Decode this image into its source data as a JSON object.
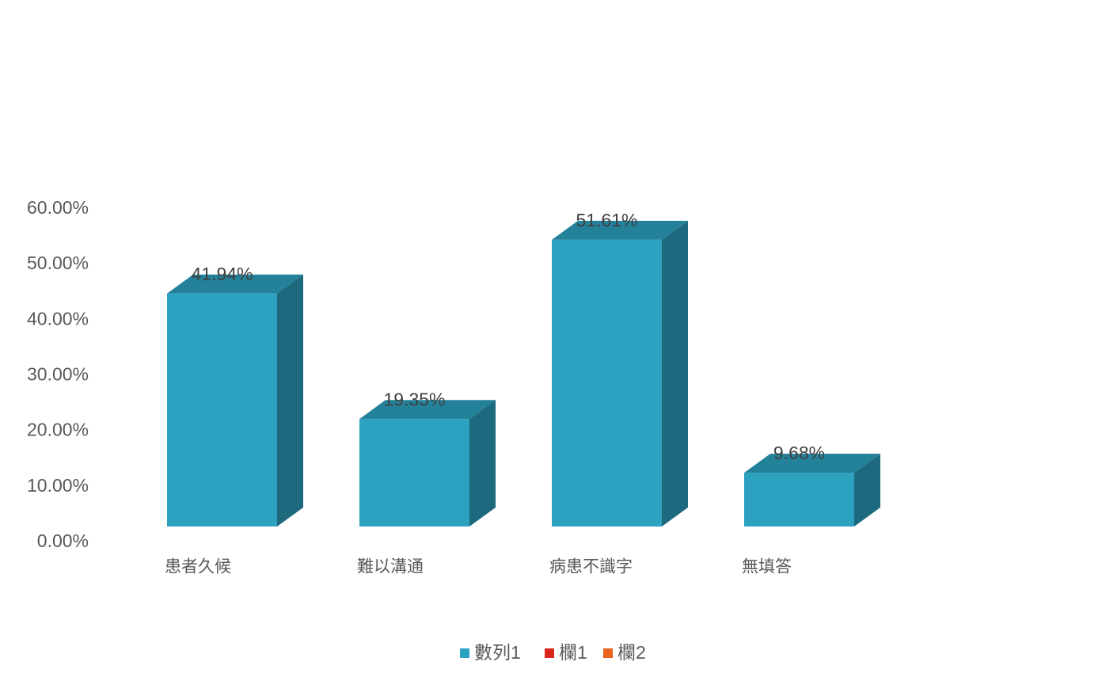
{
  "chart_data": {
    "type": "bar3d",
    "categories": [
      "患者久候",
      "難以溝通",
      "病患不識字",
      "無填答"
    ],
    "series": [
      {
        "name": "數列1",
        "color": "#2ca1c0",
        "values": [
          41.94,
          19.35,
          51.61,
          9.68
        ],
        "value_labels": [
          "41.94%",
          "19.35%",
          "51.61%",
          "9.68%"
        ]
      },
      {
        "name": "欄1",
        "color": "#d9261c",
        "values": [
          null,
          null,
          null,
          null
        ]
      },
      {
        "name": "欄2",
        "color": "#e8641e",
        "values": [
          null,
          null,
          null,
          null
        ]
      }
    ],
    "ylim": [
      0,
      60
    ],
    "yticks": [
      {
        "value": 0,
        "label": "0.00%"
      },
      {
        "value": 10,
        "label": "10.00%"
      },
      {
        "value": 20,
        "label": "20.00%"
      },
      {
        "value": 30,
        "label": "30.00%"
      },
      {
        "value": 40,
        "label": "40.00%"
      },
      {
        "value": 50,
        "label": "50.00%"
      },
      {
        "value": 60,
        "label": "60.00%"
      }
    ],
    "grid": false,
    "legend": "bottom"
  }
}
